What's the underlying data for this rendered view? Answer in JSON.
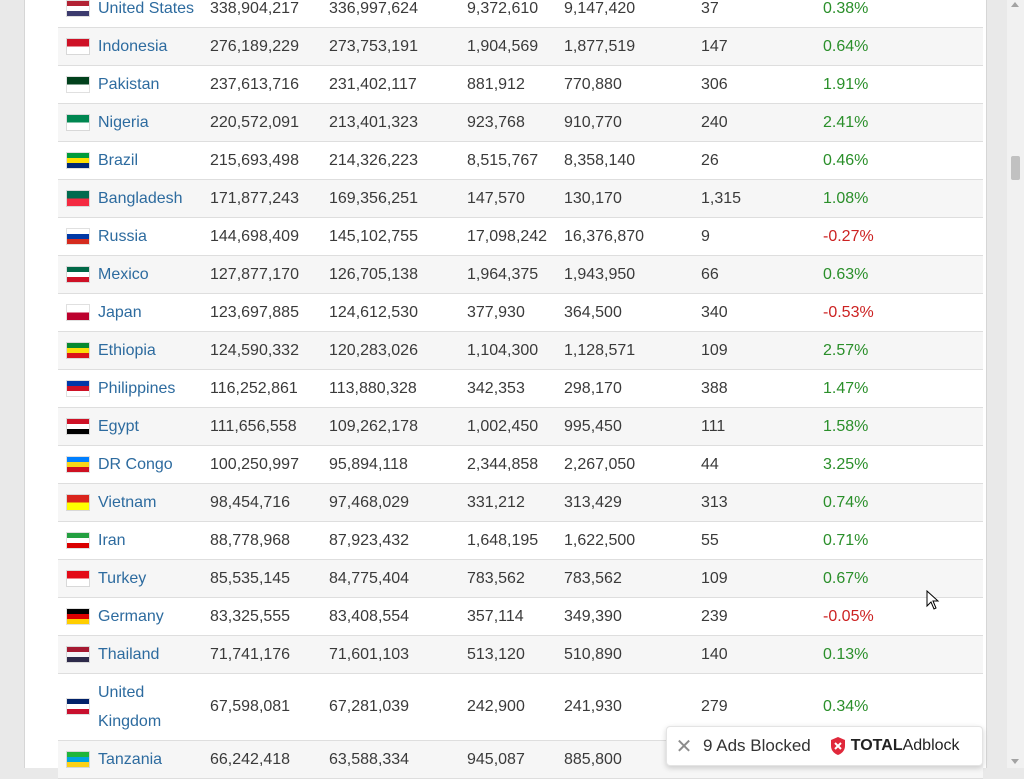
{
  "colors": {
    "link": "#2d6b9f",
    "positive": "#2a8f2a",
    "negative": "#cc2222",
    "stripe": "#f6f6f6"
  },
  "rows": [
    {
      "country": "United States",
      "pop2023": "338,904,217",
      "pop2022": "336,997,624",
      "area": "9,372,610",
      "land": "9,147,420",
      "density": "37",
      "growth": "0.38%",
      "trend": "positive",
      "flag": "us-flag-icon",
      "flag_colors": [
        "#b22234",
        "#ffffff",
        "#3c3b6e"
      ]
    },
    {
      "country": "Indonesia",
      "pop2023": "276,189,229",
      "pop2022": "273,753,191",
      "area": "1,904,569",
      "land": "1,877,519",
      "density": "147",
      "growth": "0.64%",
      "trend": "positive",
      "flag": "indonesia-flag-icon",
      "flag_colors": [
        "#ce1126",
        "#ffffff"
      ]
    },
    {
      "country": "Pakistan",
      "pop2023": "237,613,716",
      "pop2022": "231,402,117",
      "area": "881,912",
      "land": "770,880",
      "density": "306",
      "growth": "1.91%",
      "trend": "positive",
      "flag": "pakistan-flag-icon",
      "flag_colors": [
        "#01411c",
        "#ffffff"
      ]
    },
    {
      "country": "Nigeria",
      "pop2023": "220,572,091",
      "pop2022": "213,401,323",
      "area": "923,768",
      "land": "910,770",
      "density": "240",
      "growth": "2.41%",
      "trend": "positive",
      "flag": "nigeria-flag-icon",
      "flag_colors": [
        "#008751",
        "#ffffff"
      ]
    },
    {
      "country": "Brazil",
      "pop2023": "215,693,498",
      "pop2022": "214,326,223",
      "area": "8,515,767",
      "land": "8,358,140",
      "density": "26",
      "growth": "0.46%",
      "trend": "positive",
      "flag": "brazil-flag-icon",
      "flag_colors": [
        "#009c3b",
        "#ffdf00",
        "#002776"
      ]
    },
    {
      "country": "Bangladesh",
      "pop2023": "171,877,243",
      "pop2022": "169,356,251",
      "area": "147,570",
      "land": "130,170",
      "density": "1,315",
      "growth": "1.08%",
      "trend": "positive",
      "flag": "bangladesh-flag-icon",
      "flag_colors": [
        "#006a4e",
        "#f42a41"
      ]
    },
    {
      "country": "Russia",
      "pop2023": "144,698,409",
      "pop2022": "145,102,755",
      "area": "17,098,242",
      "land": "16,376,870",
      "density": "9",
      "growth": "-0.27%",
      "trend": "negative",
      "flag": "russia-flag-icon",
      "flag_colors": [
        "#ffffff",
        "#0039a6",
        "#d52b1e"
      ]
    },
    {
      "country": "Mexico",
      "pop2023": "127,877,170",
      "pop2022": "126,705,138",
      "area": "1,964,375",
      "land": "1,943,950",
      "density": "66",
      "growth": "0.63%",
      "trend": "positive",
      "flag": "mexico-flag-icon",
      "flag_colors": [
        "#006847",
        "#ffffff",
        "#ce1126"
      ]
    },
    {
      "country": "Japan",
      "pop2023": "123,697,885",
      "pop2022": "124,612,530",
      "area": "377,930",
      "land": "364,500",
      "density": "340",
      "growth": "-0.53%",
      "trend": "negative",
      "flag": "japan-flag-icon",
      "flag_colors": [
        "#ffffff",
        "#bc002d"
      ]
    },
    {
      "country": "Ethiopia",
      "pop2023": "124,590,332",
      "pop2022": "120,283,026",
      "area": "1,104,300",
      "land": "1,128,571",
      "density": "109",
      "growth": "2.57%",
      "trend": "positive",
      "flag": "ethiopia-flag-icon",
      "flag_colors": [
        "#078930",
        "#fcdd09",
        "#da121a"
      ]
    },
    {
      "country": "Philippines",
      "pop2023": "116,252,861",
      "pop2022": "113,880,328",
      "area": "342,353",
      "land": "298,170",
      "density": "388",
      "growth": "1.47%",
      "trend": "positive",
      "flag": "philippines-flag-icon",
      "flag_colors": [
        "#0038a8",
        "#ce1126",
        "#ffffff"
      ]
    },
    {
      "country": "Egypt",
      "pop2023": "111,656,558",
      "pop2022": "109,262,178",
      "area": "1,002,450",
      "land": "995,450",
      "density": "111",
      "growth": "1.58%",
      "trend": "positive",
      "flag": "egypt-flag-icon",
      "flag_colors": [
        "#ce1126",
        "#ffffff",
        "#000000"
      ]
    },
    {
      "country": "DR Congo",
      "pop2023": "100,250,997",
      "pop2022": "95,894,118",
      "area": "2,344,858",
      "land": "2,267,050",
      "density": "44",
      "growth": "3.25%",
      "trend": "positive",
      "flag": "dr-congo-flag-icon",
      "flag_colors": [
        "#007fff",
        "#f7d618",
        "#ce1021"
      ]
    },
    {
      "country": "Vietnam",
      "pop2023": "98,454,716",
      "pop2022": "97,468,029",
      "area": "331,212",
      "land": "313,429",
      "density": "313",
      "growth": "0.74%",
      "trend": "positive",
      "flag": "vietnam-flag-icon",
      "flag_colors": [
        "#da251d",
        "#ffff00"
      ]
    },
    {
      "country": "Iran",
      "pop2023": "88,778,968",
      "pop2022": "87,923,432",
      "area": "1,648,195",
      "land": "1,622,500",
      "density": "55",
      "growth": "0.71%",
      "trend": "positive",
      "flag": "iran-flag-icon",
      "flag_colors": [
        "#239f40",
        "#ffffff",
        "#da0000"
      ]
    },
    {
      "country": "Turkey",
      "pop2023": "85,535,145",
      "pop2022": "84,775,404",
      "area": "783,562",
      "land": "783,562",
      "density": "109",
      "growth": "0.67%",
      "trend": "positive",
      "flag": "turkey-flag-icon",
      "flag_colors": [
        "#e30a17",
        "#ffffff"
      ]
    },
    {
      "country": "Germany",
      "pop2023": "83,325,555",
      "pop2022": "83,408,554",
      "area": "357,114",
      "land": "349,390",
      "density": "239",
      "growth": "-0.05%",
      "trend": "negative",
      "flag": "germany-flag-icon",
      "flag_colors": [
        "#000000",
        "#dd0000",
        "#ffce00"
      ]
    },
    {
      "country": "Thailand",
      "pop2023": "71,741,176",
      "pop2022": "71,601,103",
      "area": "513,120",
      "land": "510,890",
      "density": "140",
      "growth": "0.13%",
      "trend": "positive",
      "flag": "thailand-flag-icon",
      "flag_colors": [
        "#a51931",
        "#f4f5f8",
        "#2d2a4a"
      ]
    },
    {
      "country": "United Kingdom",
      "pop2023": "67,598,081",
      "pop2022": "67,281,039",
      "area": "242,900",
      "land": "241,930",
      "density": "279",
      "growth": "0.34%",
      "trend": "positive",
      "flag": "uk-flag-icon",
      "flag_colors": [
        "#012169",
        "#ffffff",
        "#c8102e"
      ]
    },
    {
      "country": "Tanzania",
      "pop2023": "66,242,418",
      "pop2022": "63,588,334",
      "area": "945,087",
      "land": "885,800",
      "density": "",
      "growth": "",
      "trend": "positive",
      "flag": "tanzania-flag-icon",
      "flag_colors": [
        "#1eb53a",
        "#00a3dd",
        "#fcd116",
        "#000000"
      ]
    }
  ],
  "adblock": {
    "close_icon": "close-icon",
    "message": "9 Ads Blocked",
    "brand_bold": "TOTAL",
    "brand_rest": "Adblock",
    "shield_icon": "shield-x-icon"
  }
}
